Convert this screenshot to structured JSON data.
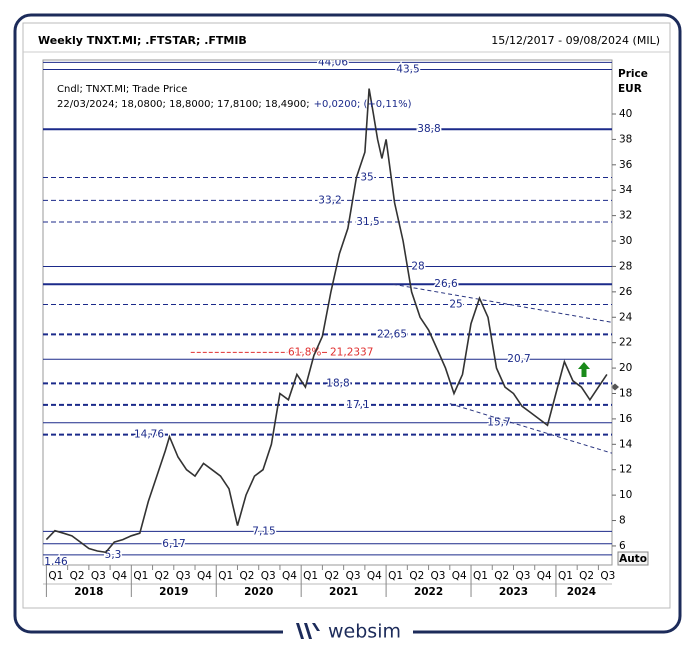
{
  "chart_data": {
    "type": "line",
    "title": "Weekly TNXT.MI; .FTSTAR; .FTMIB",
    "date_range": "15/12/2017 - 09/08/2024 (MIL)",
    "info_line1": "Cndl; TNXT.MI; Trade Price",
    "info_line2": "22/03/2024; 18,0800; 18,8000; 17,8100; 18,4900;",
    "info_change": "+0,0200; (+0,11%)",
    "y_label": [
      "Price",
      "EUR"
    ],
    "auto_label": "Auto",
    "brand": "websim",
    "color": "#333333",
    "x": [
      2018.0,
      2018.1,
      2018.2,
      2018.3,
      2018.4,
      2018.5,
      2018.6,
      2018.7,
      2018.8,
      2018.9,
      2019.0,
      2019.1,
      2019.2,
      2019.3,
      2019.4,
      2019.45,
      2019.55,
      2019.65,
      2019.75,
      2019.85,
      2019.95,
      2020.05,
      2020.15,
      2020.25,
      2020.35,
      2020.45,
      2020.55,
      2020.65,
      2020.75,
      2020.85,
      2020.95,
      2021.05,
      2021.15,
      2021.25,
      2021.35,
      2021.45,
      2021.55,
      2021.65,
      2021.75,
      2021.8,
      2021.85,
      2021.9,
      2021.95,
      2022.0,
      2022.1,
      2022.2,
      2022.3,
      2022.4,
      2022.5,
      2022.6,
      2022.7,
      2022.8,
      2022.9,
      2023.0,
      2023.1,
      2023.2,
      2023.3,
      2023.4,
      2023.5,
      2023.6,
      2023.7,
      2023.8,
      2023.9,
      2024.0,
      2024.1,
      2024.2,
      2024.3,
      2024.4,
      2024.5,
      2024.6
    ],
    "values": [
      6.5,
      7.2,
      7.0,
      6.8,
      6.3,
      5.8,
      5.6,
      5.5,
      6.3,
      6.5,
      6.8,
      7.0,
      9.5,
      11.5,
      13.5,
      14.6,
      13.0,
      12.0,
      11.5,
      12.5,
      12.0,
      11.5,
      10.5,
      7.6,
      10.0,
      11.5,
      12.0,
      14.0,
      18.0,
      17.5,
      19.5,
      18.5,
      21.0,
      22.5,
      26.0,
      29.0,
      31.0,
      35.0,
      37.0,
      42.0,
      40.0,
      38.0,
      36.5,
      38.0,
      33.0,
      30.0,
      26.0,
      24.0,
      23.0,
      21.5,
      20.0,
      18.0,
      19.5,
      23.5,
      25.5,
      24.0,
      20.0,
      18.5,
      18.0,
      17.0,
      16.5,
      16.0,
      15.5,
      18.0,
      20.5,
      19.0,
      18.5,
      17.5,
      18.5,
      19.5
    ],
    "xlim": [
      2017.96,
      2024.66
    ],
    "ylim": [
      4.5,
      44.25
    ],
    "yticks": [
      6,
      8,
      10,
      12,
      14,
      16,
      18,
      20,
      22,
      24,
      26,
      28,
      30,
      32,
      34,
      36,
      38,
      40
    ],
    "xticks": [
      {
        "value": 2018.0,
        "label": "Q1"
      },
      {
        "value": 2018.25,
        "label": "Q2"
      },
      {
        "value": 2018.5,
        "label": "Q3"
      },
      {
        "value": 2018.75,
        "label": "Q4"
      },
      {
        "value": 2019.0,
        "label": "Q1"
      },
      {
        "value": 2019.25,
        "label": "Q2"
      },
      {
        "value": 2019.5,
        "label": "Q3"
      },
      {
        "value": 2019.75,
        "label": "Q4"
      },
      {
        "value": 2020.0,
        "label": "Q1"
      },
      {
        "value": 2020.25,
        "label": "Q2"
      },
      {
        "value": 2020.5,
        "label": "Q3"
      },
      {
        "value": 2020.75,
        "label": "Q4"
      },
      {
        "value": 2021.0,
        "label": "Q1"
      },
      {
        "value": 2021.25,
        "label": "Q2"
      },
      {
        "value": 2021.5,
        "label": "Q3"
      },
      {
        "value": 2021.75,
        "label": "Q4"
      },
      {
        "value": 2022.0,
        "label": "Q1"
      },
      {
        "value": 2022.25,
        "label": "Q2"
      },
      {
        "value": 2022.5,
        "label": "Q3"
      },
      {
        "value": 2022.75,
        "label": "Q4"
      },
      {
        "value": 2023.0,
        "label": "Q1"
      },
      {
        "value": 2023.25,
        "label": "Q2"
      },
      {
        "value": 2023.5,
        "label": "Q3"
      },
      {
        "value": 2023.75,
        "label": "Q4"
      },
      {
        "value": 2024.0,
        "label": "Q1"
      },
      {
        "value": 2024.25,
        "label": "Q2"
      },
      {
        "value": 2024.5,
        "label": "Q3"
      }
    ],
    "year_ticks": [
      {
        "value": 2018.5,
        "label": "2018"
      },
      {
        "value": 2019.5,
        "label": "2019"
      },
      {
        "value": 2020.5,
        "label": "2020"
      },
      {
        "value": 2021.5,
        "label": "2021"
      },
      {
        "value": 2022.5,
        "label": "2022"
      },
      {
        "value": 2023.5,
        "label": "2023"
      },
      {
        "value": 2024.3,
        "label": "2024"
      }
    ],
    "levels": [
      {
        "value": 44.06,
        "label": "44,06",
        "style": "solid",
        "thick": false
      },
      {
        "value": 43.5,
        "label": "43,5",
        "style": "solid",
        "thick": false
      },
      {
        "value": 38.8,
        "label": "38,8",
        "style": "solid",
        "thick": true
      },
      {
        "value": 35,
        "label": "35",
        "style": "dashed",
        "thick": false
      },
      {
        "value": 33.2,
        "label": "33,2",
        "style": "dashed",
        "thick": false
      },
      {
        "value": 31.5,
        "label": "31,5",
        "style": "dashed",
        "thick": false
      },
      {
        "value": 28,
        "label": "28",
        "style": "solid",
        "thick": false
      },
      {
        "value": 26.6,
        "label": "26,6",
        "style": "solid",
        "thick": true
      },
      {
        "value": 25,
        "label": "25",
        "style": "dashed",
        "thick": false
      },
      {
        "value": 22.65,
        "label": "22,65",
        "style": "dashed",
        "thick": true
      },
      {
        "value": 20.7,
        "label": "20,7",
        "style": "solid",
        "thick": false
      },
      {
        "value": 18.8,
        "label": "18,8",
        "style": "dashed",
        "thick": true
      },
      {
        "value": 17.1,
        "label": "17,1",
        "style": "dashed",
        "thick": true
      },
      {
        "value": 15.7,
        "label": "15,7",
        "style": "solid",
        "thick": false
      },
      {
        "value": 14.76,
        "label": "14,76",
        "style": "dashed",
        "thick": true
      },
      {
        "value": 7.15,
        "label": "7,15",
        "style": "solid",
        "thick": false
      },
      {
        "value": 6.17,
        "label": "6,17",
        "style": "solid",
        "thick": false
      },
      {
        "value": 5.3,
        "label": "5,3",
        "style": "solid",
        "thick": false
      },
      {
        "value": 1.46,
        "label": "1,46",
        "style": "solid",
        "thick": false
      }
    ],
    "fib": {
      "label": "61,8%",
      "value": 21.2337,
      "value_label": "21,2337",
      "x": [
        2019.7,
        2021.2
      ],
      "color": "#e03030"
    },
    "trendlines": [
      {
        "x": [
          2022.08,
          2024.66
        ],
        "y": [
          26.6,
          23.6
        ]
      },
      {
        "x": [
          2022.75,
          2024.66
        ],
        "y": [
          17.2,
          13.3
        ]
      }
    ]
  }
}
